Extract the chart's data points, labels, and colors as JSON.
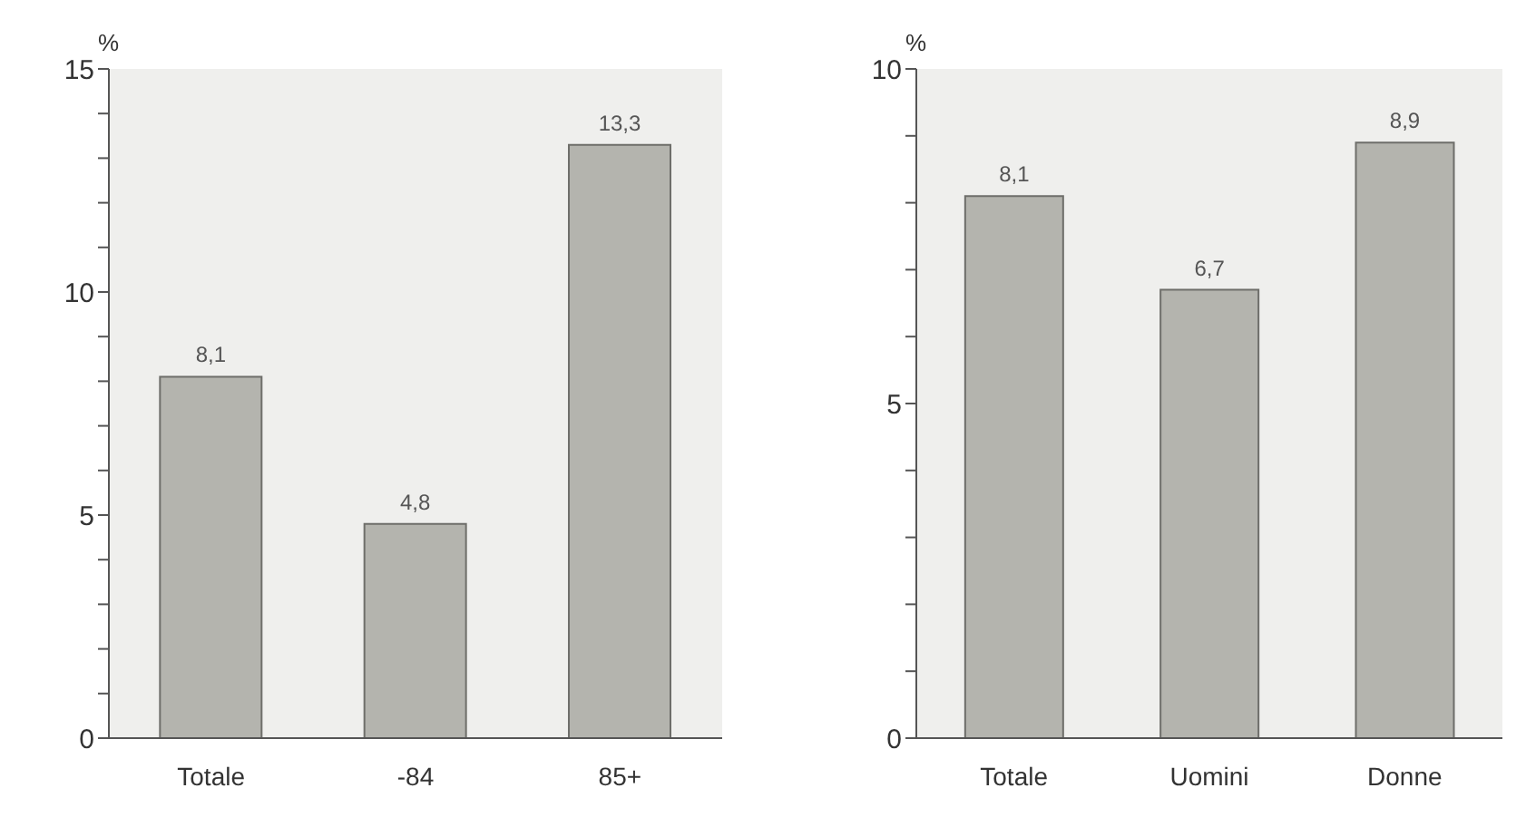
{
  "chart_data": [
    {
      "type": "bar",
      "ylabel": "%",
      "categories": [
        "Totale",
        "-84",
        "85+"
      ],
      "values": [
        8.1,
        4.8,
        13.3
      ],
      "value_labels": [
        "8,1",
        "4,8",
        "13,3"
      ],
      "color": "#b4b4ae",
      "ylim": [
        0,
        15
      ],
      "yticks": [
        0,
        {
          "value": 1,
          "label": null
        },
        {
          "value": 2,
          "label": null
        },
        {
          "value": 3,
          "label": null
        },
        {
          "value": 4,
          "label": null
        },
        5,
        {
          "value": 6,
          "label": null
        },
        {
          "value": 7,
          "label": null
        },
        {
          "value": 8,
          "label": null
        },
        {
          "value": 9,
          "label": null
        },
        10,
        {
          "value": 11,
          "label": null
        },
        {
          "value": 12,
          "label": null
        },
        {
          "value": 13,
          "label": null
        },
        {
          "value": 14,
          "label": null
        },
        15
      ]
    },
    {
      "type": "bar",
      "ylabel": "%",
      "categories": [
        "Totale",
        "Uomini",
        "Donne"
      ],
      "values": [
        8.1,
        6.7,
        8.9
      ],
      "value_labels": [
        "8,1",
        "6,7",
        "8,9"
      ],
      "color": "#b4b4ae",
      "ylim": [
        0,
        10
      ],
      "yticks": [
        0,
        {
          "value": 1,
          "label": null
        },
        {
          "value": 2,
          "label": null
        },
        {
          "value": 3,
          "label": null
        },
        {
          "value": 4,
          "label": null
        },
        5,
        {
          "value": 6,
          "label": null
        },
        {
          "value": 7,
          "label": null
        },
        {
          "value": 8,
          "label": null
        },
        {
          "value": 9,
          "label": null
        },
        10
      ]
    }
  ]
}
